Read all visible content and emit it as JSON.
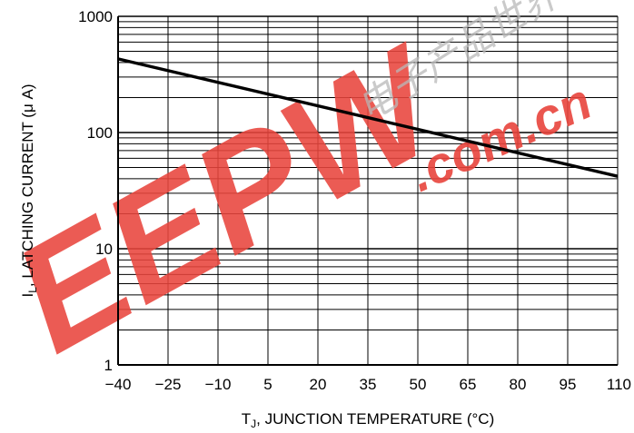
{
  "chart_data": {
    "type": "line",
    "title": "",
    "xlabel": {
      "main": "T",
      "sub": "J",
      "rest": ", JUNCTION TEMPERATURE (°C)"
    },
    "ylabel": {
      "main": "I",
      "sub": "L",
      "rest": ", LATCHING CURRENT (μ A)"
    },
    "x_scale": "linear",
    "y_scale": "log",
    "xlim": [
      -40,
      110
    ],
    "ylim": [
      1,
      1000
    ],
    "x_ticks": [
      -40,
      -25,
      -10,
      5,
      20,
      35,
      50,
      65,
      80,
      95,
      110
    ],
    "x_tick_labels": [
      "−40",
      "−25",
      "−10",
      "5",
      "20",
      "35",
      "50",
      "65",
      "80",
      "95",
      "110"
    ],
    "y_ticks": [
      1,
      10,
      100,
      1000
    ],
    "y_tick_labels": [
      "1",
      "10",
      "100",
      "1000"
    ],
    "grid": true,
    "series": [
      {
        "x": [
          -40,
          110
        ],
        "y": [
          430,
          42
        ]
      }
    ]
  },
  "watermark": {
    "logo_text": "EEPW",
    "domain_text": ".com.cn",
    "cn_text": "电子产品世界",
    "color": "#e8443c"
  }
}
